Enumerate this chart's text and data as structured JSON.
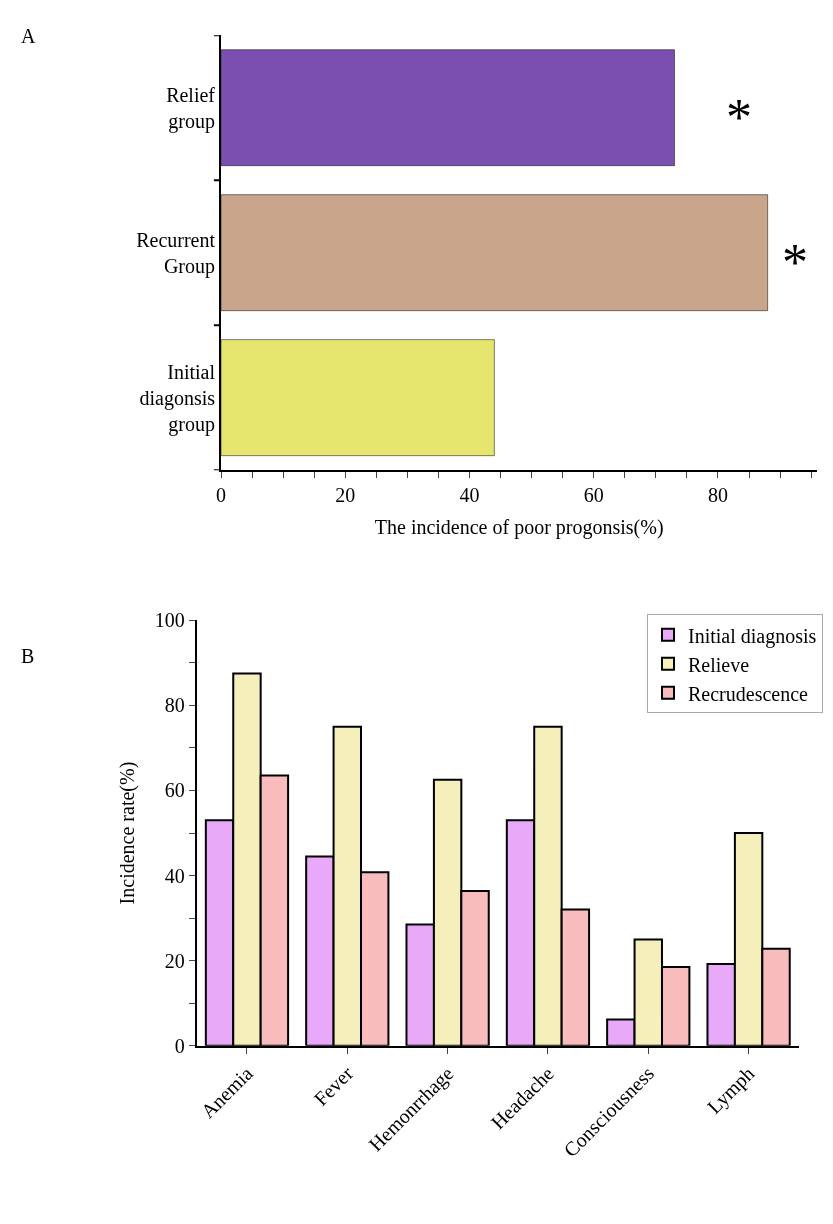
{
  "chart_data": [
    {
      "type": "bar",
      "orientation": "horizontal",
      "xlabel": "The incidence of poor progonsis(%)",
      "categories": [
        "Relief group",
        "Recurrent Group",
        "Initial diagonsis group"
      ],
      "values": [
        73,
        88,
        44
      ],
      "colors": [
        "#7b4fb0",
        "#c9a58c",
        "#e6e66e"
      ],
      "xlim": [
        0,
        96
      ],
      "xticks": [
        0,
        {
          "value": 5,
          "label": null
        },
        {
          "value": 10,
          "label": null
        },
        {
          "value": 15,
          "label": null
        },
        20,
        {
          "value": 25,
          "label": null
        },
        {
          "value": 30,
          "label": null
        },
        {
          "value": 35,
          "label": null
        },
        40,
        {
          "value": 45,
          "label": null
        },
        {
          "value": 50,
          "label": null
        },
        {
          "value": 55,
          "label": null
        },
        60,
        {
          "value": 65,
          "label": null
        },
        {
          "value": 70,
          "label": null
        },
        {
          "value": 75,
          "label": null
        },
        80,
        {
          "value": 85,
          "label": null
        },
        {
          "value": 90,
          "label": null
        },
        {
          "value": 95,
          "label": null
        }
      ],
      "annotations": [
        "A",
        "*",
        "*"
      ],
      "legend": false
    },
    {
      "type": "bar",
      "ylabel": "Incidence rate(%)",
      "categories": [
        "Anemia",
        "Fever",
        "Hemonrrhage",
        "Headache",
        "Consciousness",
        "Lymph"
      ],
      "series": [
        {
          "name": "Initial diagnosis",
          "color": "#e8aaf8",
          "values": [
            53,
            44.5,
            28.5,
            53,
            6.2,
            19.2
          ]
        },
        {
          "name": "Relieve",
          "color": "#f5f0bb",
          "values": [
            87.5,
            75,
            62.5,
            75,
            25,
            50
          ]
        },
        {
          "name": "Recrudescence",
          "color": "#f9bcbc",
          "values": [
            63.5,
            40.8,
            36.4,
            32,
            18.5,
            22.8
          ]
        }
      ],
      "ylim": [
        0,
        100
      ],
      "yticks": [
        0,
        {
          "value": 10,
          "label": null
        },
        20,
        {
          "value": 30,
          "label": null
        },
        40,
        {
          "value": 50,
          "label": null
        },
        60,
        {
          "value": 70,
          "label": null
        },
        80,
        {
          "value": 90,
          "label": null
        },
        100
      ],
      "annotations": [
        "B"
      ],
      "legend": "top right"
    }
  ]
}
